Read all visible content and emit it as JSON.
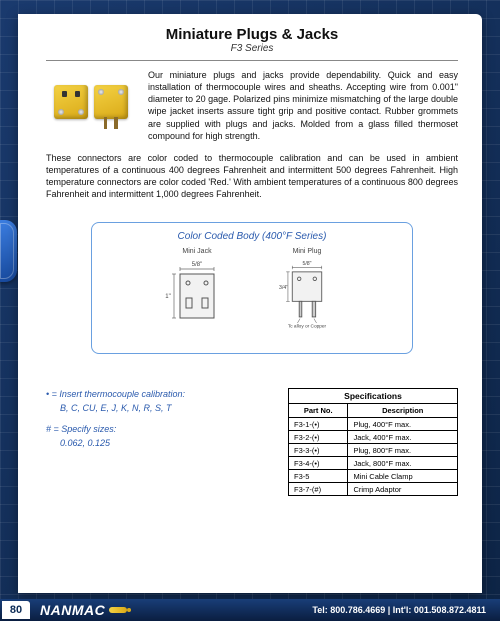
{
  "header": {
    "title": "Miniature Plugs & Jacks",
    "subtitle": "F3 Series"
  },
  "intro": "Our miniature plugs and jacks provide dependability. Quick and easy installation of thermocouple wires and sheaths. Accepting wire from 0.001\" diameter to 20 gage. Polarized pins minimize mismatching of the large double wipe jacket inserts assure tight grip and positive contact. Rubber grommets are supplied with plugs and jacks. Molded from a glass filled thermoset compound for high strength.",
  "body": "These connectors are color coded to thermocouple calibration and can be used in ambient temperatures of a continuous 400 degrees Fahrenheit and intermittent 500 degrees Fahrenheit. High temperature connectors are color coded 'Red.' With ambient temperatures of a continuous 800 degrees Fahrenheit and intermittent 1,000 degrees Fahrenheit.",
  "diagram": {
    "title": "Color Coded Body (400°F Series)",
    "left_label": "Mini Jack",
    "right_label": "Mini Plug",
    "dim_width": "5/8\"",
    "dim_height_jack": "1\"",
    "dim_height_plug": "3/4\"",
    "footer_label": "Tc alloy or Copper",
    "border_color": "#6aa0e0",
    "title_color": "#2a5aad"
  },
  "legend": {
    "line1_prefix": "• = Insert thermocouple calibration:",
    "line1_values": "B, C, CU, E, J, K, N, R, S, T",
    "line2_prefix": "# = Specify sizes:",
    "line2_values": "0.062, 0.125",
    "color": "#2a5aad"
  },
  "spec": {
    "title": "Specifications",
    "columns": [
      "Part No.",
      "Description"
    ],
    "rows": [
      [
        "F3-1-(•)",
        "Plug, 400°F max."
      ],
      [
        "F3-2-(•)",
        "Jack, 400°F max."
      ],
      [
        "F3-3-(•)",
        "Plug, 800°F max."
      ],
      [
        "F3-4-(•)",
        "Jack, 800°F max."
      ],
      [
        "F3-5",
        "Mini Cable Clamp"
      ],
      [
        "F3-7-(#)",
        "Crimp Adaptor"
      ]
    ]
  },
  "footer": {
    "page_number": "80",
    "brand": "NANMAC",
    "contact": "Tel: 800.786.4669 | Int'l: 001.508.872.4811"
  },
  "colors": {
    "bg_dark": "#0d2445",
    "bg_light": "#1a3a6e",
    "product_yellow": "#e8bd2a",
    "accent_blue": "#2a5aad"
  }
}
